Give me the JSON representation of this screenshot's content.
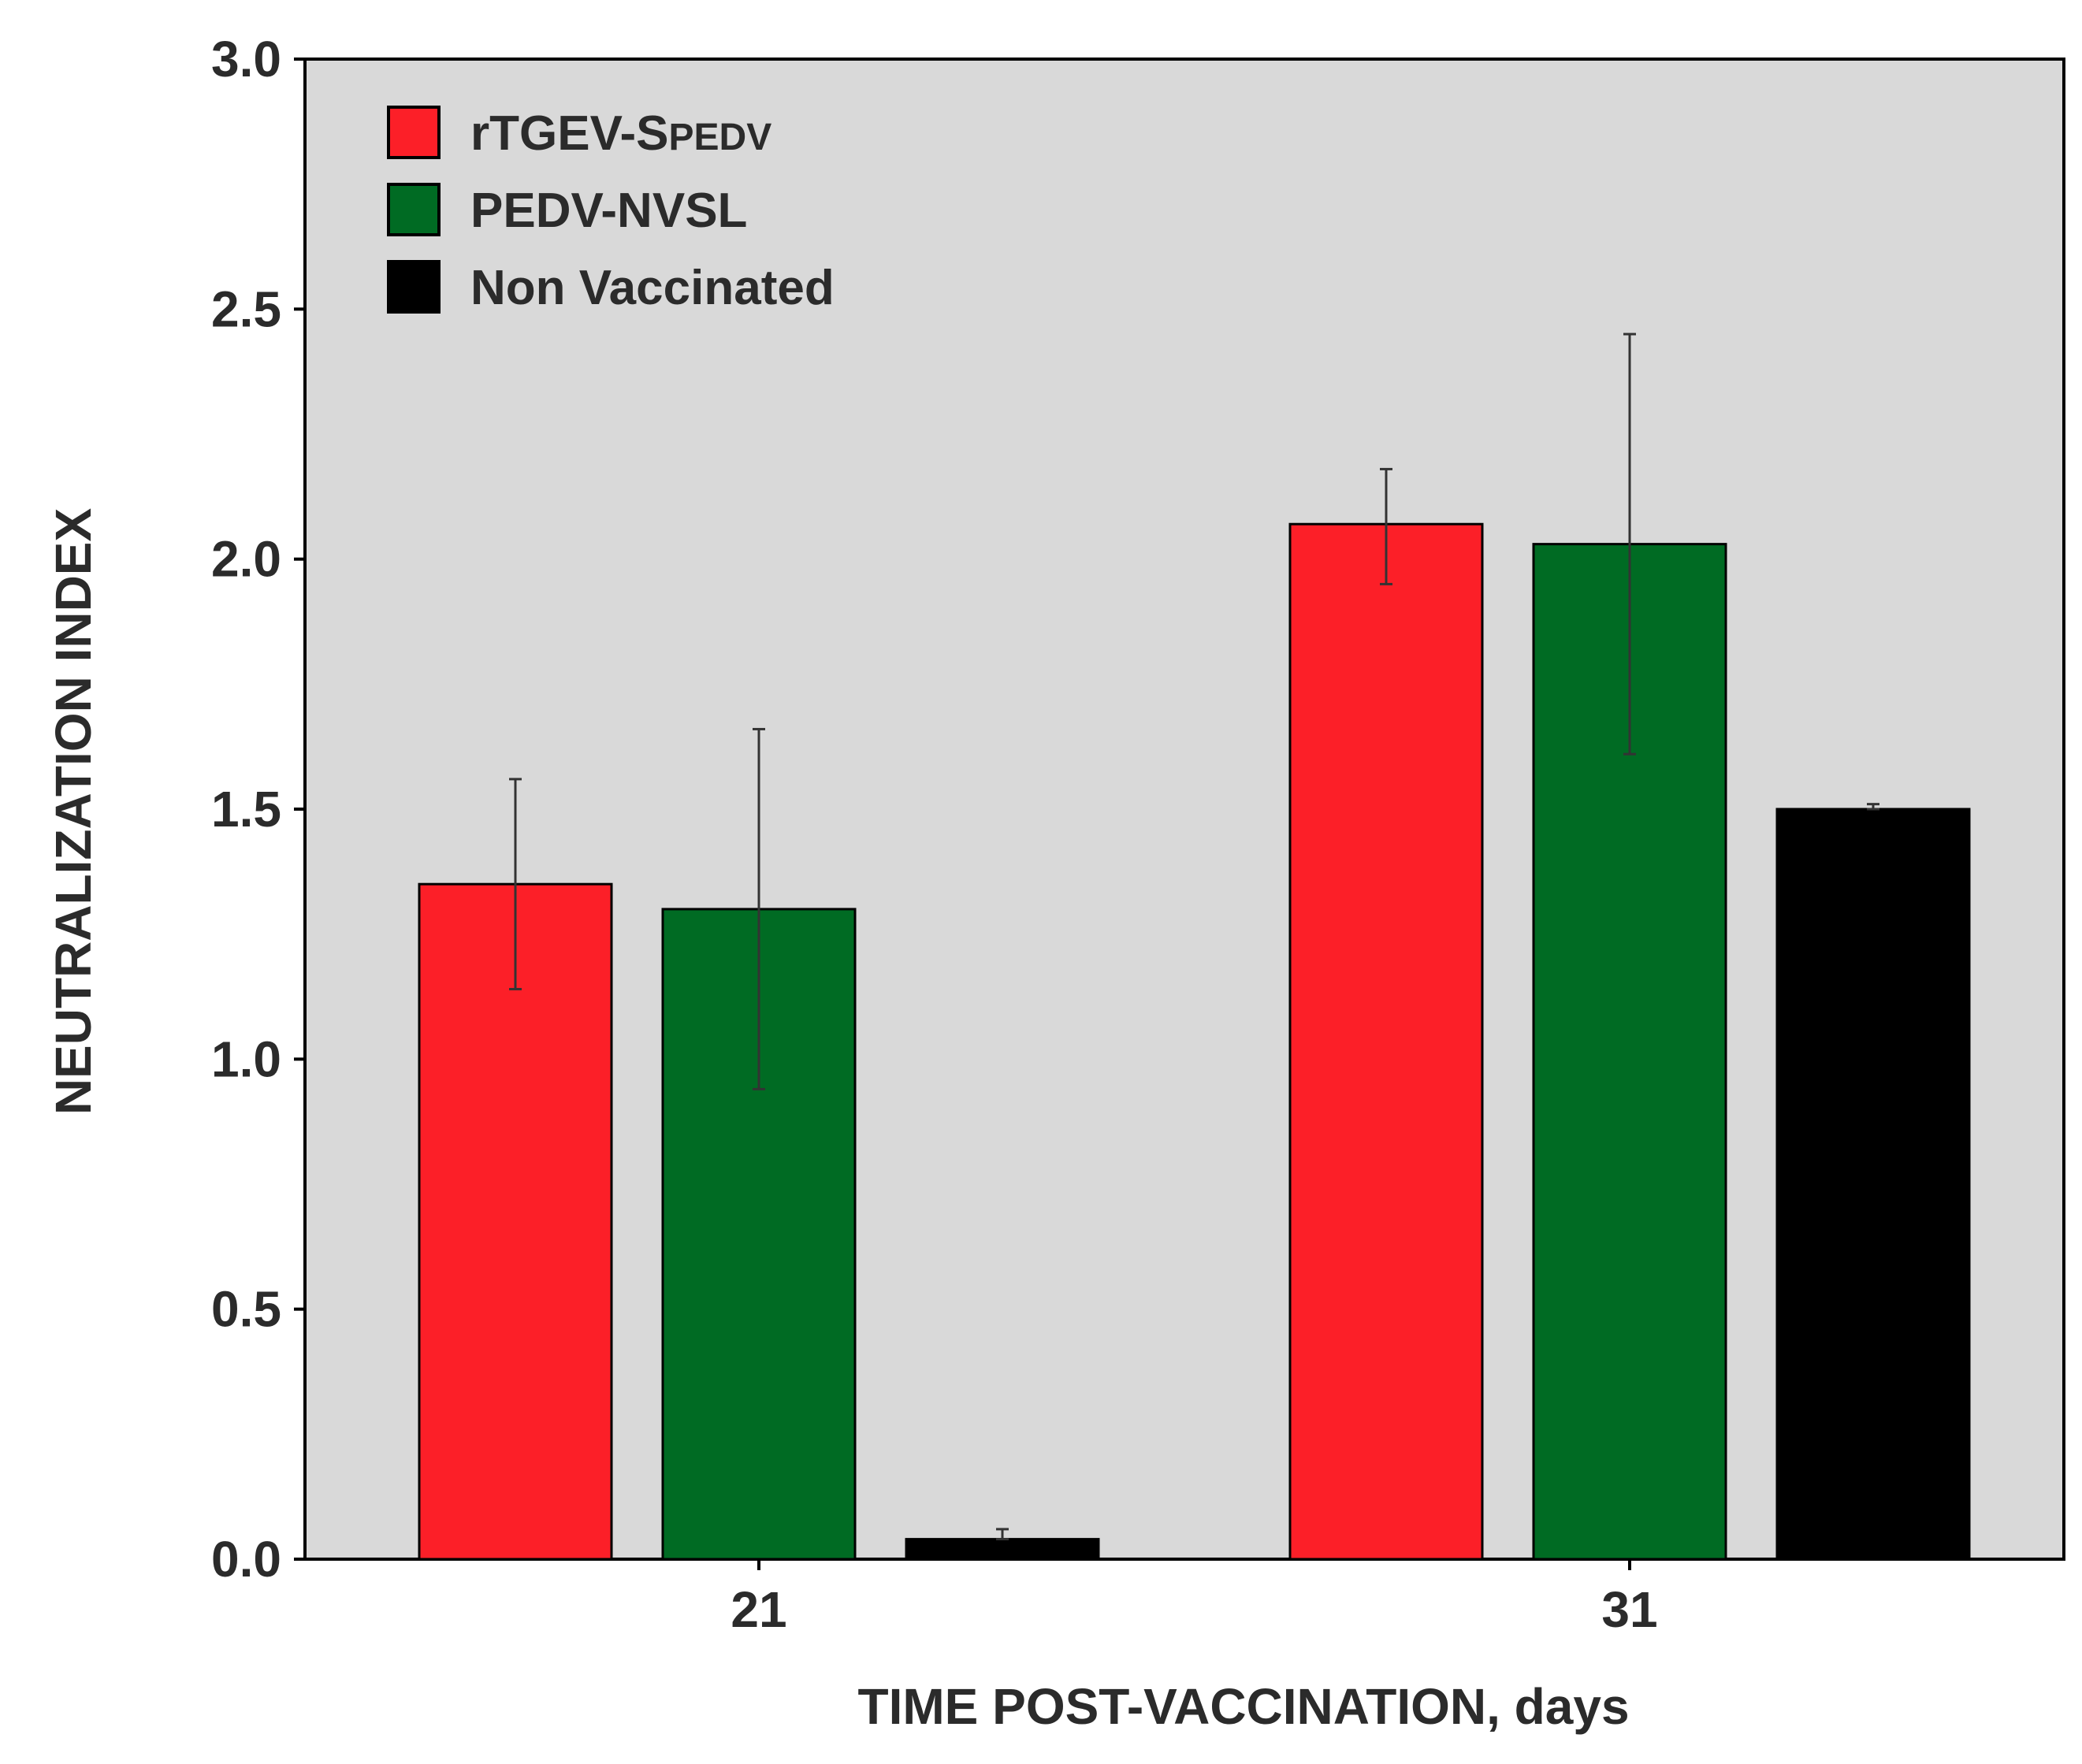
{
  "chart_data": {
    "type": "bar",
    "xlabel": "TIME POST-VACCINATION, days",
    "ylabel": "NEUTRALIZATION INDEX",
    "ylim": [
      0,
      3.0
    ],
    "yticks": [
      "0.0",
      "0.5",
      "1.0",
      "1.5",
      "2.0",
      "2.5",
      "3.0"
    ],
    "ytick_values": [
      0,
      0.5,
      1.0,
      1.5,
      2.0,
      2.5,
      3.0
    ],
    "categories": [
      "21",
      "31"
    ],
    "background_color": "#d9d9d9",
    "legend_position": "top-left",
    "series": [
      {
        "name": "rTGEV-S",
        "name_suffix": "PEDV",
        "color": "#fc1f28",
        "values": [
          1.35,
          2.07
        ],
        "error_low": [
          1.14,
          1.95
        ],
        "error_high": [
          1.56,
          2.18
        ]
      },
      {
        "name": "PEDV-NVSL",
        "name_suffix": "",
        "color": "#006b23",
        "values": [
          1.3,
          2.03
        ],
        "error_low": [
          0.94,
          1.61
        ],
        "error_high": [
          1.66,
          2.45
        ]
      },
      {
        "name": "Non Vaccinated",
        "name_suffix": "",
        "color": "#000000",
        "values": [
          0.04,
          1.5
        ],
        "error_low": [
          0.04,
          1.5
        ],
        "error_high": [
          0.06,
          1.51
        ]
      }
    ]
  }
}
